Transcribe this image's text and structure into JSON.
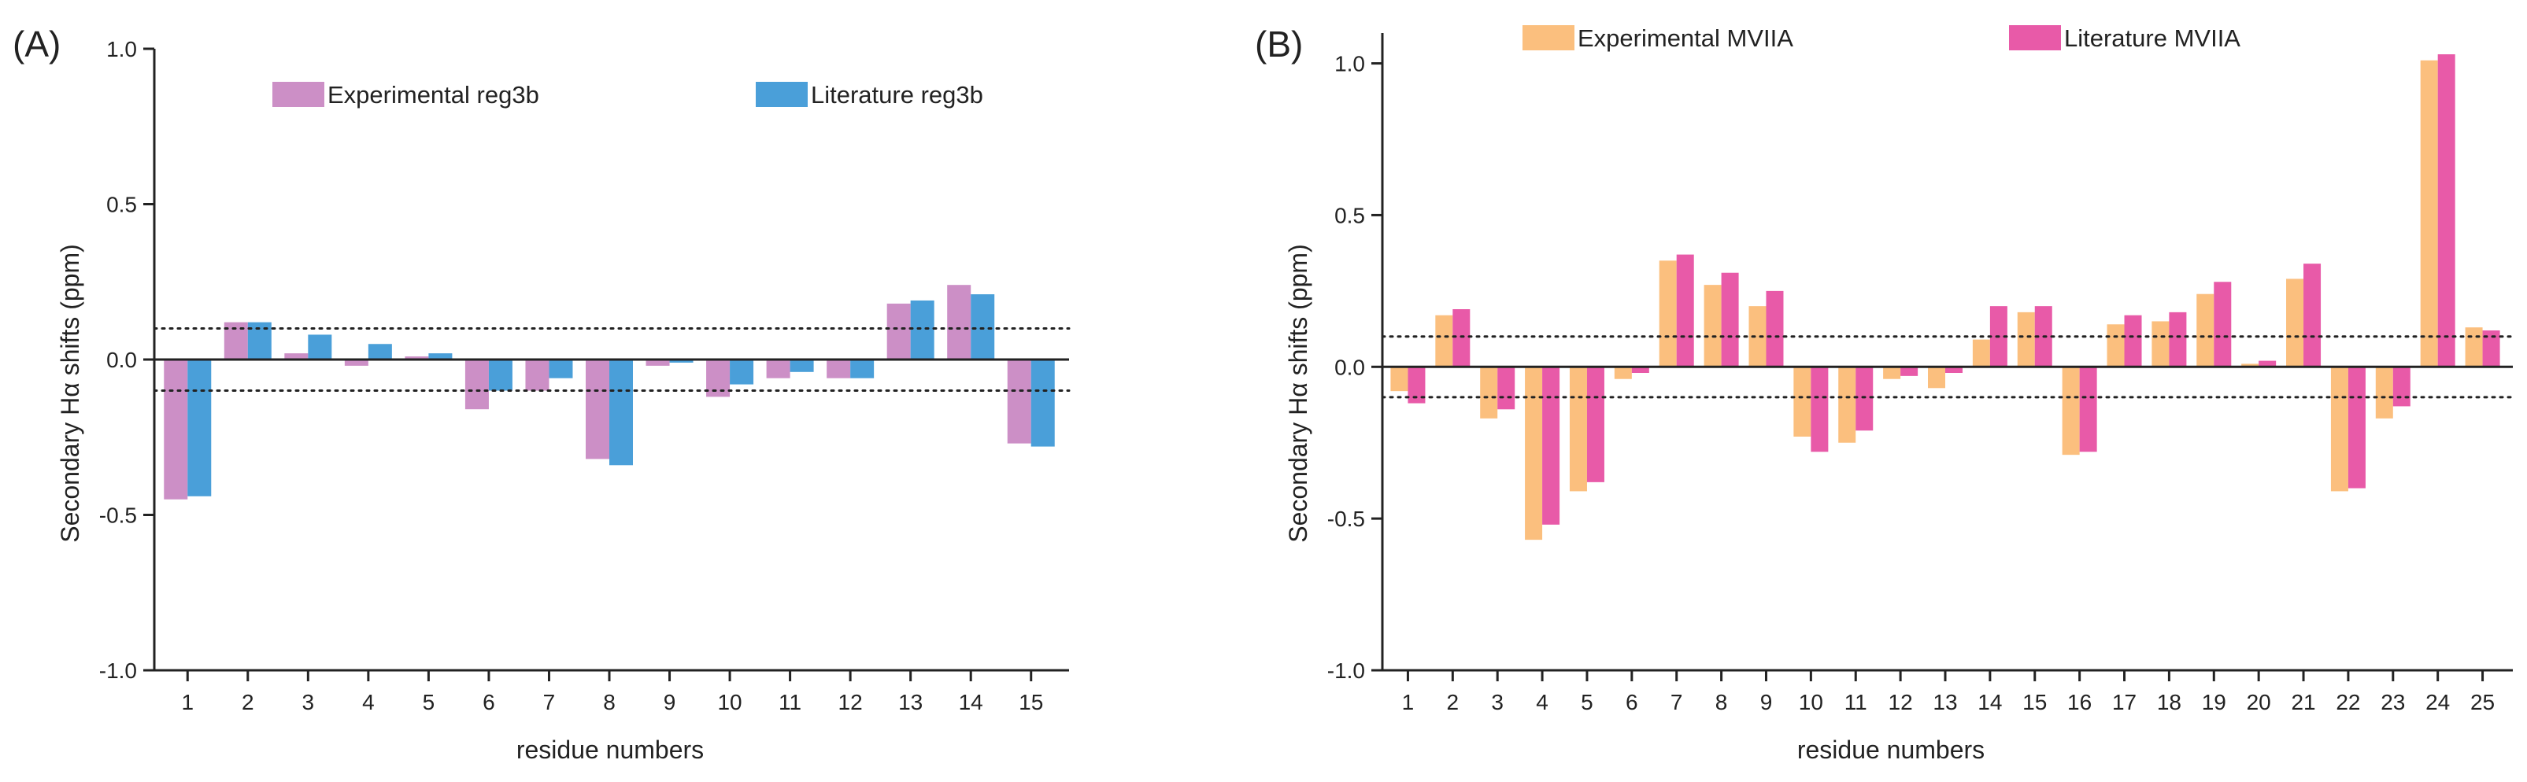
{
  "chart_data": [
    {
      "panel_label": "(A)",
      "type": "bar",
      "categories": [
        "1",
        "2",
        "3",
        "4",
        "5",
        "6",
        "7",
        "8",
        "9",
        "10",
        "11",
        "12",
        "13",
        "14",
        "15"
      ],
      "series": [
        {
          "name": "Experimental reg3b",
          "color": "#cc8fc6",
          "values": [
            -0.45,
            0.12,
            0.02,
            -0.02,
            0.01,
            -0.16,
            -0.1,
            -0.32,
            -0.02,
            -0.12,
            -0.06,
            -0.06,
            0.18,
            0.24,
            -0.27
          ]
        },
        {
          "name": "Literature reg3b",
          "color": "#4a9fd9",
          "values": [
            -0.44,
            0.12,
            0.08,
            0.05,
            0.02,
            -0.1,
            -0.06,
            -0.34,
            -0.01,
            -0.08,
            -0.04,
            -0.06,
            0.19,
            0.21,
            -0.28
          ]
        }
      ],
      "xlabel": "residue numbers",
      "ylabel": "Secondary Hα shifts (ppm)",
      "ylim": [
        -1.0,
        1.0
      ],
      "yticks": [
        "1.0",
        "0.5",
        "0.0",
        "-0.5",
        "-1.0"
      ],
      "reference_lines": [
        0.1,
        -0.1
      ],
      "legend_position": "top"
    },
    {
      "panel_label": "(B)",
      "type": "bar",
      "categories": [
        "1",
        "2",
        "3",
        "4",
        "5",
        "6",
        "7",
        "8",
        "9",
        "10",
        "11",
        "12",
        "13",
        "14",
        "15",
        "16",
        "17",
        "18",
        "19",
        "20",
        "21",
        "22",
        "23",
        "24",
        "25"
      ],
      "series": [
        {
          "name": "Experimental MVIIA",
          "color": "#fbbf7e",
          "values": [
            -0.08,
            0.17,
            -0.17,
            -0.57,
            -0.41,
            -0.04,
            0.35,
            0.27,
            0.2,
            -0.23,
            -0.25,
            -0.04,
            -0.07,
            0.09,
            0.18,
            -0.29,
            0.14,
            0.15,
            0.24,
            0.01,
            0.29,
            -0.41,
            -0.17,
            1.01,
            0.13
          ]
        },
        {
          "name": "Literature MVIIA",
          "color": "#e85aa8",
          "values": [
            -0.12,
            0.19,
            -0.14,
            -0.52,
            -0.38,
            -0.02,
            0.37,
            0.31,
            0.25,
            -0.28,
            -0.21,
            -0.03,
            -0.02,
            0.2,
            0.2,
            -0.28,
            0.17,
            0.18,
            0.28,
            0.02,
            0.34,
            -0.4,
            -0.13,
            1.03,
            0.12
          ]
        }
      ],
      "xlabel": "residue numbers",
      "ylabel": "Secondary Hα shifts (ppm)",
      "ylim": [
        -1.0,
        1.1
      ],
      "yticks": [
        "1.0",
        "0.5",
        "0.0",
        "-0.5",
        "-1.0"
      ],
      "reference_lines": [
        0.1,
        -0.1
      ],
      "legend_position": "top"
    }
  ]
}
